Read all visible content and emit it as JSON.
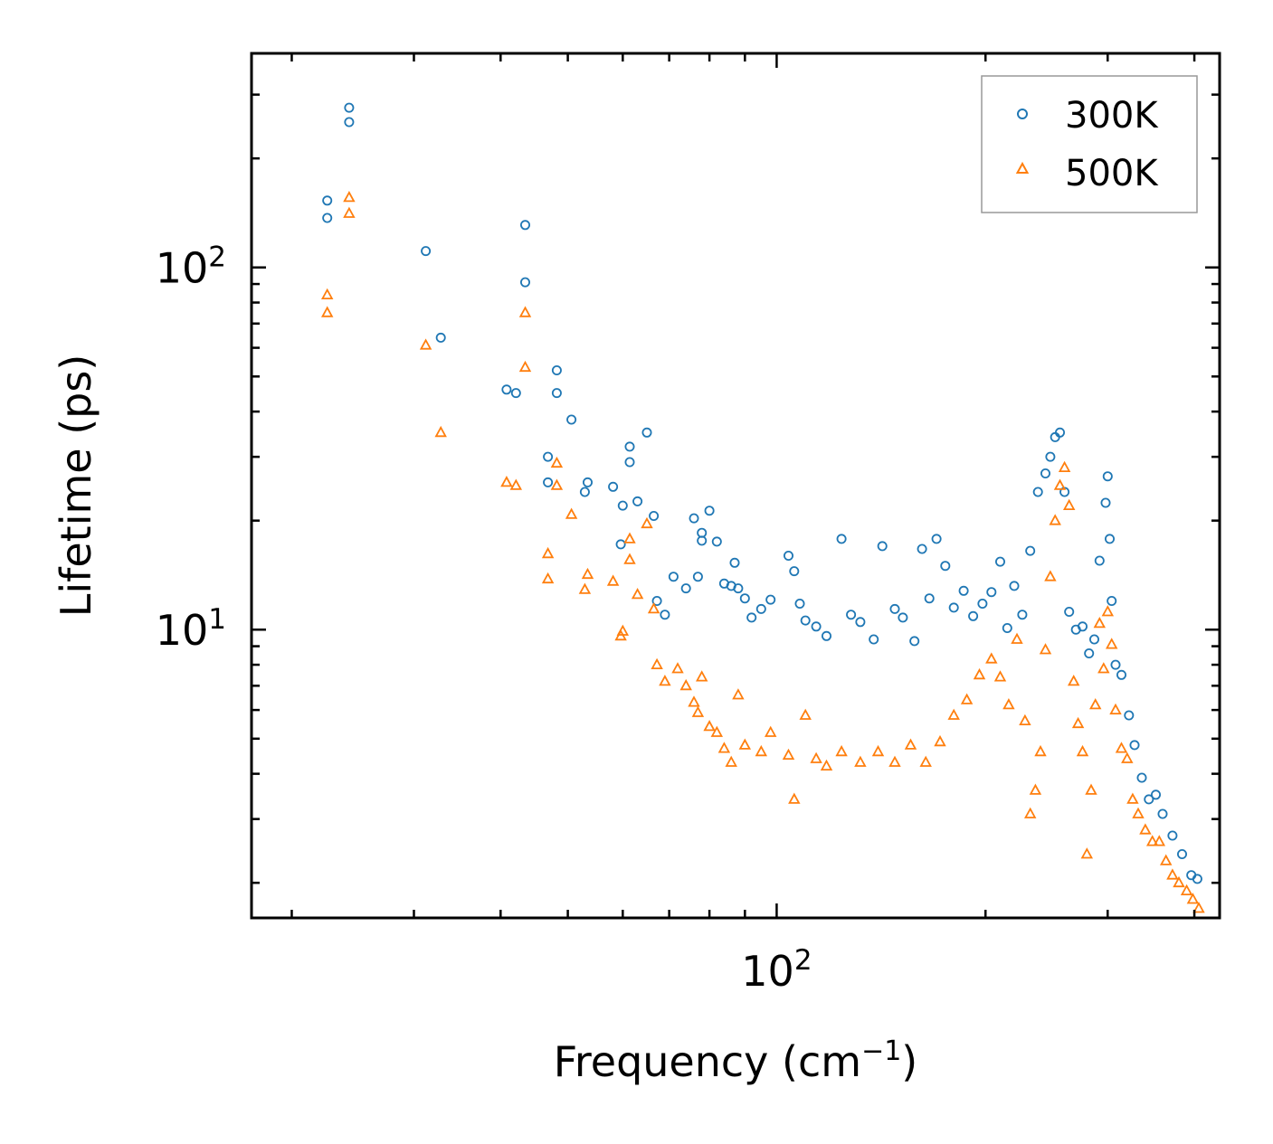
{
  "chart_data": {
    "type": "scatter",
    "title": "",
    "xlabel": "Frequency (cm",
    "xlabel_sup": "−1",
    "xlabel_close": ")",
    "ylabel": "Lifetime (ps)",
    "xscale": "log",
    "yscale": "log",
    "xlim": [
      17.5,
      435
    ],
    "ylim": [
      1.6,
      390
    ],
    "x_major_ticks": [
      {
        "value": 100,
        "base": "10",
        "exp": "2"
      }
    ],
    "y_major_ticks": [
      {
        "value": 10,
        "base": "10",
        "exp": "1"
      },
      {
        "value": 100,
        "base": "10",
        "exp": "2"
      }
    ],
    "legend": {
      "position": "top-right"
    },
    "series": [
      {
        "name": "300K",
        "color": "#1f77b4",
        "marker": "circle",
        "points": [
          [
            22.5,
            153
          ],
          [
            22.5,
            137
          ],
          [
            24.2,
            276
          ],
          [
            24.2,
            252
          ],
          [
            31.2,
            111
          ],
          [
            32.8,
            64
          ],
          [
            40.8,
            46
          ],
          [
            42.1,
            45
          ],
          [
            43.4,
            131
          ],
          [
            43.4,
            91
          ],
          [
            46.8,
            30
          ],
          [
            46.8,
            25.5
          ],
          [
            48.2,
            52
          ],
          [
            48.2,
            45
          ],
          [
            50.6,
            38
          ],
          [
            52.9,
            24
          ],
          [
            53.4,
            25.5
          ],
          [
            58.1,
            24.8
          ],
          [
            59.6,
            17.2
          ],
          [
            60,
            22
          ],
          [
            61.4,
            32
          ],
          [
            61.4,
            29
          ],
          [
            63,
            22.6
          ],
          [
            65,
            35
          ],
          [
            66.5,
            20.6
          ],
          [
            67.2,
            12
          ],
          [
            69,
            11
          ],
          [
            71,
            14
          ],
          [
            74,
            13
          ],
          [
            76,
            20.3
          ],
          [
            77,
            14
          ],
          [
            78,
            18.5
          ],
          [
            78,
            17.6
          ],
          [
            80,
            21.3
          ],
          [
            82,
            17.5
          ],
          [
            84,
            13.4
          ],
          [
            86,
            13.2
          ],
          [
            87,
            15.3
          ],
          [
            88,
            13
          ],
          [
            90,
            12.2
          ],
          [
            92,
            10.8
          ],
          [
            95,
            11.4
          ],
          [
            98,
            12.1
          ],
          [
            104,
            16
          ],
          [
            106,
            14.5
          ],
          [
            108,
            11.8
          ],
          [
            110,
            10.6
          ],
          [
            114,
            10.2
          ],
          [
            118,
            9.6
          ],
          [
            124,
            17.8
          ],
          [
            128,
            11
          ],
          [
            132,
            10.5
          ],
          [
            138,
            9.4
          ],
          [
            142,
            17
          ],
          [
            148,
            11.4
          ],
          [
            152,
            10.8
          ],
          [
            158,
            9.3
          ],
          [
            162,
            16.7
          ],
          [
            166,
            12.2
          ],
          [
            170,
            17.8
          ],
          [
            175,
            15
          ],
          [
            180,
            11.5
          ],
          [
            186,
            12.8
          ],
          [
            192,
            10.9
          ],
          [
            198,
            11.8
          ],
          [
            204,
            12.7
          ],
          [
            210,
            15.4
          ],
          [
            215,
            10.1
          ],
          [
            220,
            13.2
          ],
          [
            226,
            11
          ],
          [
            232,
            16.5
          ],
          [
            238,
            24
          ],
          [
            244,
            27
          ],
          [
            248,
            30
          ],
          [
            252,
            34
          ],
          [
            256,
            35
          ],
          [
            260,
            24
          ],
          [
            264,
            11.2
          ],
          [
            270,
            10
          ],
          [
            276,
            10.2
          ],
          [
            282,
            8.6
          ],
          [
            287,
            9.4
          ],
          [
            292,
            15.5
          ],
          [
            298,
            22.4
          ],
          [
            300,
            26.5
          ],
          [
            302,
            17.8
          ],
          [
            304,
            12
          ],
          [
            308,
            8
          ],
          [
            314,
            7.5
          ],
          [
            322,
            5.8
          ],
          [
            328,
            4.8
          ],
          [
            336,
            3.9
          ],
          [
            344,
            3.4
          ],
          [
            352,
            3.5
          ],
          [
            360,
            3.1
          ],
          [
            372,
            2.7
          ],
          [
            384,
            2.4
          ],
          [
            396,
            2.1
          ],
          [
            404,
            2.05
          ]
        ]
      },
      {
        "name": "500K",
        "color": "#ff7f0e",
        "marker": "triangle",
        "points": [
          [
            22.5,
            84
          ],
          [
            22.5,
            75
          ],
          [
            24.2,
            156
          ],
          [
            24.2,
            141
          ],
          [
            31.2,
            61
          ],
          [
            32.8,
            35
          ],
          [
            40.8,
            25.5
          ],
          [
            42.1,
            25
          ],
          [
            43.4,
            75
          ],
          [
            43.4,
            53
          ],
          [
            46.8,
            16.2
          ],
          [
            46.8,
            13.8
          ],
          [
            48.2,
            28.8
          ],
          [
            48.2,
            25
          ],
          [
            50.6,
            20.8
          ],
          [
            52.9,
            12.9
          ],
          [
            53.4,
            14.2
          ],
          [
            58.1,
            13.6
          ],
          [
            59.6,
            9.6
          ],
          [
            60,
            9.9
          ],
          [
            61.4,
            17.8
          ],
          [
            61.4,
            15.6
          ],
          [
            63,
            12.5
          ],
          [
            65,
            19.6
          ],
          [
            66.5,
            11.4
          ],
          [
            67.2,
            8
          ],
          [
            69,
            7.2
          ],
          [
            72,
            7.8
          ],
          [
            74,
            7
          ],
          [
            76,
            6.3
          ],
          [
            77,
            5.9
          ],
          [
            78,
            7.4
          ],
          [
            80,
            5.4
          ],
          [
            82,
            5.2
          ],
          [
            84,
            4.7
          ],
          [
            86,
            4.3
          ],
          [
            88,
            6.6
          ],
          [
            90,
            4.8
          ],
          [
            95,
            4.6
          ],
          [
            98,
            5.2
          ],
          [
            104,
            4.5
          ],
          [
            106,
            3.4
          ],
          [
            110,
            5.8
          ],
          [
            114,
            4.4
          ],
          [
            118,
            4.2
          ],
          [
            124,
            4.6
          ],
          [
            132,
            4.3
          ],
          [
            140,
            4.6
          ],
          [
            148,
            4.3
          ],
          [
            156,
            4.8
          ],
          [
            164,
            4.3
          ],
          [
            172,
            4.9
          ],
          [
            180,
            5.8
          ],
          [
            188,
            6.4
          ],
          [
            196,
            7.5
          ],
          [
            204,
            8.3
          ],
          [
            210,
            7.4
          ],
          [
            216,
            6.2
          ],
          [
            222,
            9.4
          ],
          [
            228,
            5.6
          ],
          [
            232,
            3.1
          ],
          [
            236,
            3.6
          ],
          [
            240,
            4.6
          ],
          [
            244,
            8.8
          ],
          [
            248,
            14
          ],
          [
            252,
            20
          ],
          [
            256,
            25
          ],
          [
            260,
            28
          ],
          [
            264,
            22
          ],
          [
            268,
            7.2
          ],
          [
            272,
            5.5
          ],
          [
            276,
            4.6
          ],
          [
            280,
            2.4
          ],
          [
            284,
            3.6
          ],
          [
            288,
            6.2
          ],
          [
            292,
            10.4
          ],
          [
            296,
            7.8
          ],
          [
            300,
            11.2
          ],
          [
            304,
            9.1
          ],
          [
            308,
            6
          ],
          [
            314,
            4.7
          ],
          [
            320,
            4.4
          ],
          [
            326,
            3.4
          ],
          [
            332,
            3.1
          ],
          [
            340,
            2.8
          ],
          [
            348,
            2.6
          ],
          [
            356,
            2.6
          ],
          [
            364,
            2.3
          ],
          [
            372,
            2.1
          ],
          [
            380,
            2
          ],
          [
            390,
            1.9
          ],
          [
            398,
            1.8
          ],
          [
            406,
            1.7
          ]
        ]
      }
    ]
  }
}
